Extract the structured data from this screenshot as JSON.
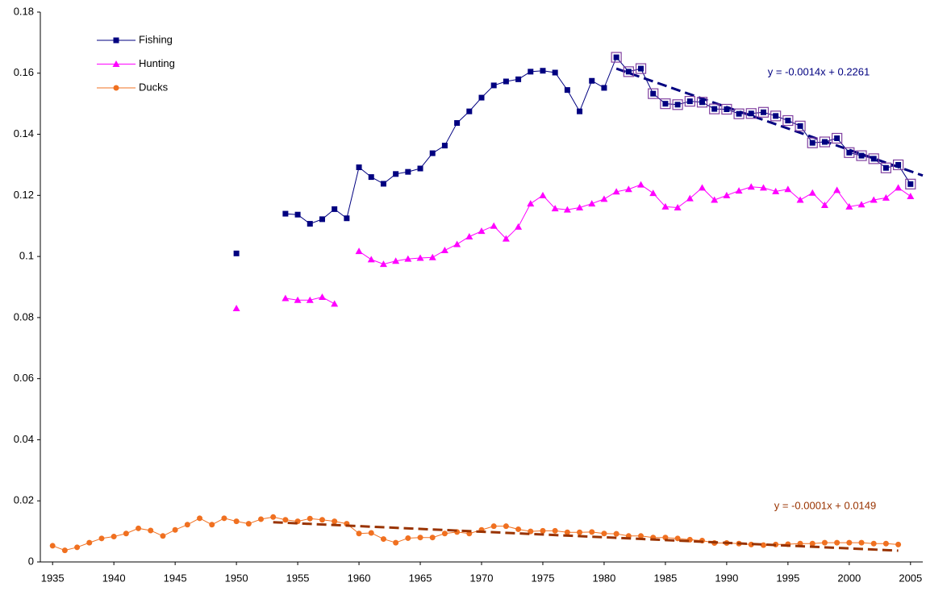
{
  "chart_data": {
    "type": "line",
    "x": [
      1935,
      1936,
      1937,
      1938,
      1939,
      1940,
      1941,
      1942,
      1943,
      1944,
      1945,
      1946,
      1947,
      1948,
      1949,
      1950,
      1951,
      1952,
      1953,
      1954,
      1955,
      1956,
      1957,
      1958,
      1959,
      1960,
      1961,
      1962,
      1963,
      1964,
      1965,
      1966,
      1967,
      1968,
      1969,
      1970,
      1971,
      1972,
      1973,
      1974,
      1975,
      1976,
      1977,
      1978,
      1979,
      1980,
      1981,
      1982,
      1983,
      1984,
      1985,
      1986,
      1987,
      1988,
      1989,
      1990,
      1991,
      1992,
      1993,
      1994,
      1995,
      1996,
      1997,
      1998,
      1999,
      2000,
      2001,
      2002,
      2003,
      2004,
      2005
    ],
    "series": [
      {
        "name": "Fishing",
        "color": "#000080",
        "marker": "square",
        "values": [
          null,
          null,
          null,
          null,
          null,
          null,
          null,
          null,
          null,
          null,
          null,
          null,
          null,
          null,
          null,
          0.101,
          null,
          null,
          null,
          0.114,
          0.1137,
          0.1107,
          0.1122,
          0.1155,
          0.1125,
          0.1292,
          0.126,
          0.1238,
          0.127,
          0.1277,
          0.1288,
          0.1338,
          0.1363,
          0.1437,
          0.1475,
          0.152,
          0.156,
          0.1573,
          0.158,
          0.1605,
          0.1608,
          0.1602,
          0.1545,
          0.1475,
          0.1575,
          0.1552,
          0.1652,
          0.1605,
          0.1615,
          0.1533,
          0.15,
          0.1497,
          0.1508,
          0.1505,
          0.1483,
          0.1482,
          0.1467,
          0.1468,
          0.1472,
          0.146,
          0.1445,
          0.1427,
          0.1372,
          0.1375,
          0.1387,
          0.134,
          0.133,
          0.132,
          0.129,
          0.13,
          0.1237
        ]
      },
      {
        "name": "Hunting",
        "color": "#ff00ff",
        "marker": "triangle",
        "values": [
          null,
          null,
          null,
          null,
          null,
          null,
          null,
          null,
          null,
          null,
          null,
          null,
          null,
          null,
          null,
          0.083,
          null,
          null,
          null,
          0.0863,
          0.0857,
          0.0857,
          0.0867,
          0.0845,
          null,
          0.1017,
          0.099,
          0.0975,
          0.0985,
          0.0992,
          0.0995,
          0.0997,
          0.102,
          0.104,
          0.1065,
          0.1083,
          0.11,
          0.1058,
          0.1097,
          0.1173,
          0.12,
          0.1157,
          0.1153,
          0.116,
          0.1173,
          0.1188,
          0.1212,
          0.122,
          0.1235,
          0.1207,
          0.1163,
          0.116,
          0.119,
          0.1225,
          0.1185,
          0.12,
          0.1215,
          0.1228,
          0.1225,
          0.1213,
          0.122,
          0.1185,
          0.1208,
          0.1168,
          0.1217,
          0.1163,
          0.117,
          0.1185,
          0.1192,
          0.1225,
          0.1197
        ]
      },
      {
        "name": "Ducks",
        "color": "#f07020",
        "marker": "circle",
        "values": [
          0.0053,
          0.0038,
          0.0048,
          0.0063,
          0.0077,
          0.0083,
          0.0093,
          0.011,
          0.0103,
          0.0085,
          0.0105,
          0.0122,
          0.0143,
          0.0122,
          0.0143,
          0.0133,
          0.0125,
          0.014,
          0.0147,
          0.0138,
          0.0133,
          0.0142,
          0.0138,
          0.0133,
          0.0125,
          0.0093,
          0.0095,
          0.0075,
          0.0063,
          0.0078,
          0.008,
          0.008,
          0.0093,
          0.0098,
          0.0093,
          0.0105,
          0.0117,
          0.0117,
          0.0107,
          0.01,
          0.0102,
          0.0102,
          0.0097,
          0.0097,
          0.0098,
          0.0093,
          0.0092,
          0.0085,
          0.0085,
          0.008,
          0.008,
          0.0077,
          0.0073,
          0.007,
          0.0062,
          0.0062,
          0.006,
          0.0057,
          0.0055,
          0.0057,
          0.0058,
          0.006,
          0.006,
          0.0063,
          0.0063,
          0.0063,
          0.0063,
          0.006,
          0.006,
          0.0057,
          null
        ]
      }
    ],
    "trendlines": [
      {
        "label": "y = -0.0014x + 0.2261",
        "color": "#000080",
        "x": [
          1981,
          2006
        ],
        "values": [
          0.1615,
          0.1265
        ],
        "highlight_color": "#8040a0"
      },
      {
        "label": "y = -0.0001x + 0.0149",
        "color": "#993300",
        "x": [
          1953,
          2004
        ],
        "values": [
          0.013,
          0.0037
        ]
      }
    ],
    "xlim": [
      1934,
      2006
    ],
    "xticks": [
      1935,
      1940,
      1945,
      1950,
      1955,
      1960,
      1965,
      1970,
      1975,
      1980,
      1985,
      1990,
      1995,
      2000,
      2005
    ],
    "ylim": [
      0,
      0.18
    ],
    "yticks": [
      0,
      0.02,
      0.04,
      0.06,
      0.08,
      0.1,
      0.12,
      0.14,
      0.16,
      0.18
    ],
    "grid": false,
    "legend": "top-left"
  }
}
